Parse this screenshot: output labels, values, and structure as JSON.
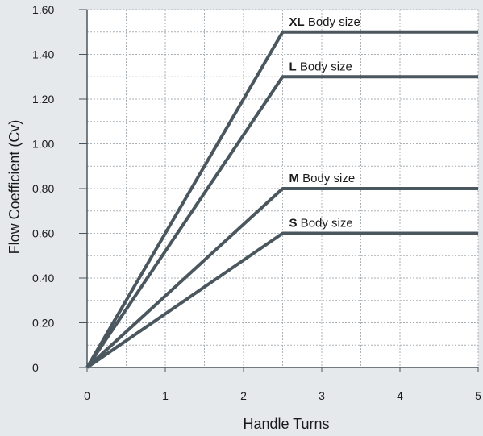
{
  "chart_data": {
    "type": "line",
    "xlabel": "Handle Turns",
    "ylabel": "Flow Coefficient (Cv)",
    "xlim": [
      0,
      5
    ],
    "ylim": [
      0,
      1.6
    ],
    "x_ticks": [
      "0",
      "1",
      "2",
      "3",
      "4",
      "5"
    ],
    "y_ticks": [
      "0",
      "0.20",
      "0.40",
      "0.60",
      "0.80",
      "1.00",
      "1.20",
      "1.40",
      "1.60"
    ],
    "grid": "dotted, every 0.5 turns and 0.1 Cv",
    "legend": "inline labels above line plateaus",
    "series": [
      {
        "name_bold": "XL",
        "name_rest": " Body size",
        "points": [
          [
            0,
            0
          ],
          [
            2.5,
            1.5
          ],
          [
            5,
            1.5
          ]
        ]
      },
      {
        "name_bold": "L",
        "name_rest": " Body size",
        "points": [
          [
            0,
            0
          ],
          [
            2.5,
            1.3
          ],
          [
            5,
            1.3
          ]
        ]
      },
      {
        "name_bold": "M",
        "name_rest": " Body size",
        "points": [
          [
            0,
            0
          ],
          [
            2.5,
            0.8
          ],
          [
            5,
            0.8
          ]
        ]
      },
      {
        "name_bold": "S",
        "name_rest": " Body size",
        "points": [
          [
            0,
            0
          ],
          [
            2.5,
            0.6
          ],
          [
            5,
            0.6
          ]
        ]
      }
    ],
    "colors": {
      "line": "#4b575e",
      "grid": "#a9b0b6",
      "axis": "#4b575e",
      "plot_bg": "#ffffff",
      "page_bg": "#e6e9ec"
    }
  }
}
